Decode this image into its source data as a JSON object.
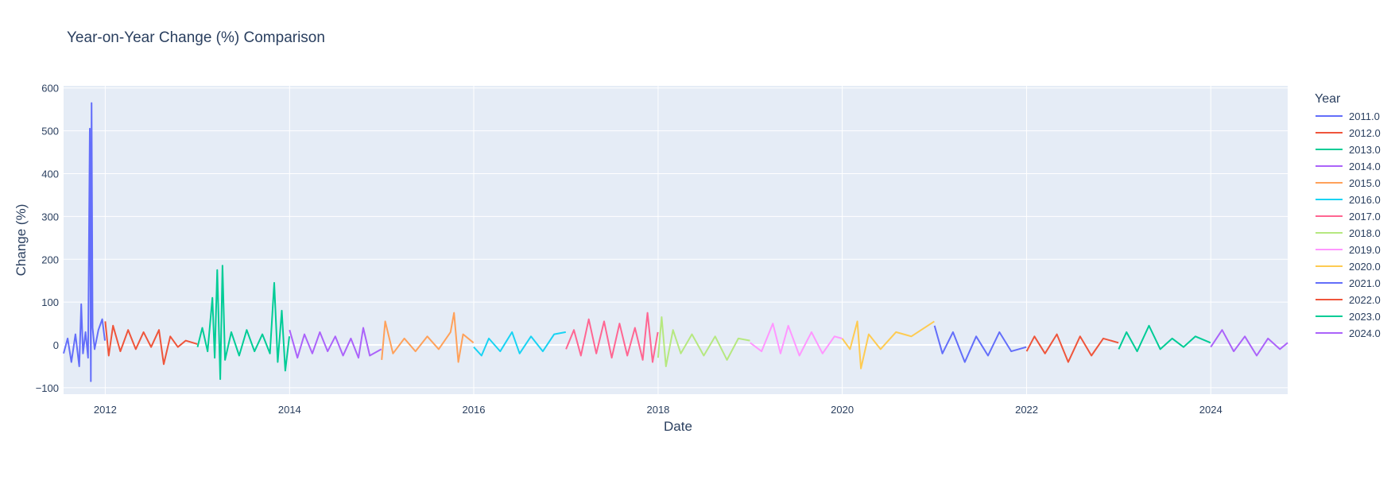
{
  "chart_data": {
    "type": "line",
    "title": "Year-on-Year Change (%) Comparison",
    "xlabel": "Date",
    "ylabel": "Change (%)",
    "legend_title": "Year",
    "legend_position": "right",
    "grid": true,
    "xlim": [
      "2011-07-20",
      "2024-11-01"
    ],
    "ylim": [
      -115,
      605
    ],
    "x_ticks": [
      "2012",
      "2014",
      "2016",
      "2018",
      "2020",
      "2022",
      "2024"
    ],
    "y_ticks": [
      -100,
      0,
      100,
      200,
      300,
      400,
      500,
      600
    ],
    "series": [
      {
        "name": "2011.0",
        "color": "#636efa",
        "points": [
          [
            "2011-07-20",
            -20
          ],
          [
            "2011-08-05",
            15
          ],
          [
            "2011-08-20",
            -40
          ],
          [
            "2011-09-05",
            25
          ],
          [
            "2011-09-20",
            -50
          ],
          [
            "2011-09-28",
            95
          ],
          [
            "2011-10-05",
            -20
          ],
          [
            "2011-10-15",
            30
          ],
          [
            "2011-10-25",
            -30
          ],
          [
            "2011-11-01",
            505
          ],
          [
            "2011-11-05",
            -85
          ],
          [
            "2011-11-08",
            565
          ],
          [
            "2011-11-12",
            40
          ],
          [
            "2011-11-20",
            -10
          ],
          [
            "2011-12-05",
            35
          ],
          [
            "2011-12-20",
            60
          ],
          [
            "2011-12-31",
            10
          ]
        ]
      },
      {
        "name": "2012.0",
        "color": "#ef553b",
        "points": [
          [
            "2012-01-01",
            55
          ],
          [
            "2012-01-15",
            -25
          ],
          [
            "2012-02-01",
            45
          ],
          [
            "2012-03-01",
            -15
          ],
          [
            "2012-04-01",
            35
          ],
          [
            "2012-05-01",
            -10
          ],
          [
            "2012-06-01",
            30
          ],
          [
            "2012-07-01",
            -5
          ],
          [
            "2012-08-01",
            35
          ],
          [
            "2012-08-20",
            -45
          ],
          [
            "2012-09-15",
            20
          ],
          [
            "2012-10-15",
            -5
          ],
          [
            "2012-11-15",
            10
          ],
          [
            "2012-12-31",
            2
          ]
        ]
      },
      {
        "name": "2013.0",
        "color": "#00cc96",
        "points": [
          [
            "2013-01-01",
            -5
          ],
          [
            "2013-01-20",
            40
          ],
          [
            "2013-02-10",
            -15
          ],
          [
            "2013-03-01",
            110
          ],
          [
            "2013-03-10",
            -30
          ],
          [
            "2013-03-20",
            175
          ],
          [
            "2013-04-01",
            -80
          ],
          [
            "2013-04-10",
            185
          ],
          [
            "2013-04-20",
            -35
          ],
          [
            "2013-05-15",
            30
          ],
          [
            "2013-06-15",
            -25
          ],
          [
            "2013-07-15",
            35
          ],
          [
            "2013-08-15",
            -15
          ],
          [
            "2013-09-15",
            25
          ],
          [
            "2013-10-15",
            -20
          ],
          [
            "2013-11-01",
            145
          ],
          [
            "2013-11-15",
            -40
          ],
          [
            "2013-12-01",
            80
          ],
          [
            "2013-12-15",
            -60
          ],
          [
            "2013-12-31",
            20
          ]
        ]
      },
      {
        "name": "2014.0",
        "color": "#ab63fa",
        "points": [
          [
            "2014-01-01",
            35
          ],
          [
            "2014-02-01",
            -30
          ],
          [
            "2014-03-01",
            25
          ],
          [
            "2014-04-01",
            -20
          ],
          [
            "2014-05-01",
            30
          ],
          [
            "2014-06-01",
            -15
          ],
          [
            "2014-07-01",
            20
          ],
          [
            "2014-08-01",
            -25
          ],
          [
            "2014-09-01",
            15
          ],
          [
            "2014-10-01",
            -30
          ],
          [
            "2014-10-20",
            40
          ],
          [
            "2014-11-15",
            -25
          ],
          [
            "2014-12-31",
            -10
          ]
        ]
      },
      {
        "name": "2015.0",
        "color": "#ffa15a",
        "points": [
          [
            "2015-01-01",
            -35
          ],
          [
            "2015-01-15",
            55
          ],
          [
            "2015-02-15",
            -20
          ],
          [
            "2015-04-01",
            15
          ],
          [
            "2015-05-15",
            -15
          ],
          [
            "2015-07-01",
            20
          ],
          [
            "2015-08-15",
            -10
          ],
          [
            "2015-10-01",
            30
          ],
          [
            "2015-10-15",
            75
          ],
          [
            "2015-11-01",
            -40
          ],
          [
            "2015-11-20",
            25
          ],
          [
            "2015-12-31",
            5
          ]
        ]
      },
      {
        "name": "2016.0",
        "color": "#19d3f3",
        "points": [
          [
            "2016-01-01",
            -5
          ],
          [
            "2016-02-01",
            -25
          ],
          [
            "2016-03-01",
            15
          ],
          [
            "2016-04-15",
            -15
          ],
          [
            "2016-06-01",
            30
          ],
          [
            "2016-07-01",
            -20
          ],
          [
            "2016-08-15",
            20
          ],
          [
            "2016-10-01",
            -15
          ],
          [
            "2016-11-15",
            25
          ],
          [
            "2016-12-31",
            30
          ]
        ]
      },
      {
        "name": "2017.0",
        "color": "#ff6692",
        "points": [
          [
            "2017-01-01",
            -10
          ],
          [
            "2017-02-01",
            35
          ],
          [
            "2017-03-01",
            -25
          ],
          [
            "2017-04-01",
            60
          ],
          [
            "2017-05-01",
            -20
          ],
          [
            "2017-06-01",
            55
          ],
          [
            "2017-07-01",
            -30
          ],
          [
            "2017-08-01",
            50
          ],
          [
            "2017-09-01",
            -25
          ],
          [
            "2017-10-01",
            40
          ],
          [
            "2017-11-01",
            -35
          ],
          [
            "2017-11-20",
            75
          ],
          [
            "2017-12-10",
            -40
          ],
          [
            "2017-12-31",
            30
          ]
        ]
      },
      {
        "name": "2018.0",
        "color": "#b6e880",
        "points": [
          [
            "2018-01-01",
            -30
          ],
          [
            "2018-01-15",
            65
          ],
          [
            "2018-02-01",
            -50
          ],
          [
            "2018-03-01",
            35
          ],
          [
            "2018-04-01",
            -20
          ],
          [
            "2018-05-15",
            25
          ],
          [
            "2018-07-01",
            -25
          ],
          [
            "2018-08-15",
            20
          ],
          [
            "2018-10-01",
            -35
          ],
          [
            "2018-11-15",
            15
          ],
          [
            "2018-12-31",
            10
          ]
        ]
      },
      {
        "name": "2019.0",
        "color": "#ff97ff",
        "points": [
          [
            "2019-01-01",
            5
          ],
          [
            "2019-02-15",
            -15
          ],
          [
            "2019-04-01",
            50
          ],
          [
            "2019-05-01",
            -20
          ],
          [
            "2019-06-01",
            45
          ],
          [
            "2019-07-15",
            -25
          ],
          [
            "2019-09-01",
            30
          ],
          [
            "2019-10-15",
            -20
          ],
          [
            "2019-12-01",
            20
          ],
          [
            "2019-12-31",
            15
          ]
        ]
      },
      {
        "name": "2020.0",
        "color": "#fecb52",
        "points": [
          [
            "2020-01-01",
            15
          ],
          [
            "2020-02-01",
            -10
          ],
          [
            "2020-03-01",
            55
          ],
          [
            "2020-03-15",
            -55
          ],
          [
            "2020-04-15",
            25
          ],
          [
            "2020-06-01",
            -10
          ],
          [
            "2020-08-01",
            30
          ],
          [
            "2020-10-01",
            20
          ],
          [
            "2020-12-31",
            55
          ]
        ]
      },
      {
        "name": "2021.0",
        "color": "#636efa",
        "points": [
          [
            "2021-01-01",
            45
          ],
          [
            "2021-02-01",
            -20
          ],
          [
            "2021-03-15",
            30
          ],
          [
            "2021-05-01",
            -40
          ],
          [
            "2021-06-15",
            20
          ],
          [
            "2021-08-01",
            -25
          ],
          [
            "2021-09-15",
            30
          ],
          [
            "2021-11-01",
            -15
          ],
          [
            "2021-12-31",
            -5
          ]
        ]
      },
      {
        "name": "2022.0",
        "color": "#ef553b",
        "points": [
          [
            "2022-01-01",
            -15
          ],
          [
            "2022-02-01",
            20
          ],
          [
            "2022-03-15",
            -20
          ],
          [
            "2022-05-01",
            25
          ],
          [
            "2022-06-15",
            -40
          ],
          [
            "2022-08-01",
            20
          ],
          [
            "2022-09-15",
            -25
          ],
          [
            "2022-11-01",
            15
          ],
          [
            "2022-12-31",
            5
          ]
        ]
      },
      {
        "name": "2023.0",
        "color": "#00cc96",
        "points": [
          [
            "2023-01-01",
            -10
          ],
          [
            "2023-02-01",
            30
          ],
          [
            "2023-03-15",
            -15
          ],
          [
            "2023-05-01",
            45
          ],
          [
            "2023-06-15",
            -10
          ],
          [
            "2023-08-01",
            15
          ],
          [
            "2023-09-15",
            -5
          ],
          [
            "2023-11-01",
            20
          ],
          [
            "2023-12-31",
            5
          ]
        ]
      },
      {
        "name": "2024.0",
        "color": "#ab63fa",
        "points": [
          [
            "2024-01-01",
            -5
          ],
          [
            "2024-02-15",
            35
          ],
          [
            "2024-04-01",
            -15
          ],
          [
            "2024-05-15",
            20
          ],
          [
            "2024-07-01",
            -25
          ],
          [
            "2024-08-15",
            15
          ],
          [
            "2024-10-01",
            -10
          ],
          [
            "2024-11-01",
            5
          ]
        ]
      }
    ]
  }
}
